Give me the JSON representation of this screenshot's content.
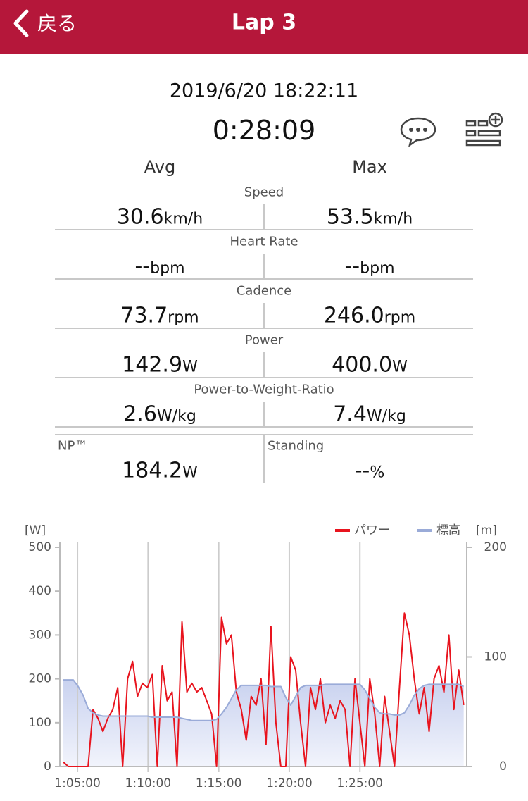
{
  "header": {
    "back": "戻る",
    "title": "Lap 3"
  },
  "datetime": "2019/6/20 18:22:11",
  "duration": "0:28:09",
  "columns": [
    "Avg",
    "Max"
  ],
  "stats": [
    {
      "label": "Speed",
      "avg": "30.6",
      "avg_unit": "km/h",
      "max": "53.5",
      "max_unit": "km/h"
    },
    {
      "label": "Heart Rate",
      "avg": "--",
      "avg_unit": "bpm",
      "max": "--",
      "max_unit": "bpm"
    },
    {
      "label": "Cadence",
      "avg": "73.7",
      "avg_unit": "rpm",
      "max": "246.0",
      "max_unit": "rpm"
    },
    {
      "label": "Power",
      "avg": "142.9",
      "avg_unit": "W",
      "max": "400.0",
      "max_unit": "W"
    },
    {
      "label": "Power-to-Weight-Ratio",
      "avg": "2.6",
      "avg_unit": "W/kg",
      "max": "7.4",
      "max_unit": "W/kg"
    }
  ],
  "extra": [
    {
      "label": "NP™",
      "value": "184.2",
      "unit": "W"
    },
    {
      "label": "Standing",
      "value": "--",
      "unit": "%"
    }
  ],
  "chart_data": {
    "type": "line",
    "y_label": "[W]",
    "y2_label": "[m]",
    "x": [
      3840,
      3861,
      3882,
      3903,
      3924,
      3945,
      3966,
      3987,
      4008,
      4029,
      4050,
      4071,
      4092,
      4113,
      4134,
      4155,
      4176,
      4197,
      4218,
      4239,
      4260,
      4281,
      4302,
      4323,
      4344,
      4365,
      4386,
      4407,
      4428,
      4449,
      4470,
      4491,
      4512,
      4533,
      4554,
      4575,
      4596,
      4617,
      4638,
      4659,
      4680,
      4701,
      4722,
      4743,
      4764,
      4785,
      4806,
      4827,
      4848,
      4869,
      4890,
      4911,
      4932,
      4953,
      4974,
      4995,
      5016,
      5037,
      5058,
      5079,
      5100,
      5121,
      5142,
      5163,
      5184,
      5205,
      5226,
      5247,
      5268,
      5289,
      5310,
      5331,
      5352,
      5373,
      5394,
      5415,
      5436,
      5457,
      5478,
      5499,
      5520,
      5541
    ],
    "series": [
      {
        "name": "パワー",
        "color": "#e8141e",
        "values": [
          10,
          0,
          0,
          0,
          0,
          0,
          130,
          110,
          80,
          110,
          130,
          180,
          0,
          200,
          240,
          160,
          190,
          180,
          210,
          0,
          230,
          150,
          170,
          0,
          330,
          170,
          190,
          170,
          180,
          150,
          120,
          0,
          340,
          280,
          300,
          170,
          130,
          60,
          160,
          140,
          200,
          50,
          320,
          100,
          0,
          0,
          250,
          220,
          100,
          0,
          180,
          130,
          200,
          100,
          140,
          110,
          150,
          130,
          0,
          200,
          100,
          0,
          200,
          120,
          0,
          160,
          80,
          0,
          180,
          350,
          300,
          200,
          120,
          180,
          80,
          200,
          230,
          170,
          300,
          130,
          220,
          140
        ]
      },
      {
        "name": "標高",
        "color": "#9aabd8",
        "axis": "y2",
        "values": [
          79,
          79,
          79,
          73,
          65,
          53,
          49,
          47,
          46,
          46,
          46,
          46,
          46,
          46,
          46,
          46,
          46,
          46,
          45,
          45,
          45,
          45,
          45,
          45,
          44,
          43,
          42,
          42,
          42,
          42,
          42,
          43,
          48,
          54,
          62,
          70,
          74,
          74,
          74,
          74,
          74,
          74,
          73,
          73,
          73,
          63,
          56,
          64,
          72,
          74,
          74,
          74,
          74,
          75,
          75,
          75,
          75,
          75,
          75,
          75,
          75,
          70,
          62,
          54,
          49,
          48,
          48,
          47,
          47,
          49,
          56,
          65,
          71,
          74,
          75,
          75,
          75,
          75,
          75,
          75,
          75,
          73
        ]
      }
    ],
    "xlim": [
      3834,
      5545
    ],
    "xticks": [
      {
        "value": 3900,
        "label": "1:05:00"
      },
      {
        "value": 4200,
        "label": "1:10:00"
      },
      {
        "value": 4500,
        "label": "1:15:00"
      },
      {
        "value": 4800,
        "label": "1:20:00"
      },
      {
        "value": 5100,
        "label": "1:25:00"
      }
    ],
    "ylim": [
      0,
      500
    ],
    "yticks": [
      0,
      100,
      200,
      300,
      400,
      500
    ],
    "y2lim": [
      0,
      200
    ],
    "y2ticks": [
      0,
      100,
      200
    ],
    "grid": true
  }
}
